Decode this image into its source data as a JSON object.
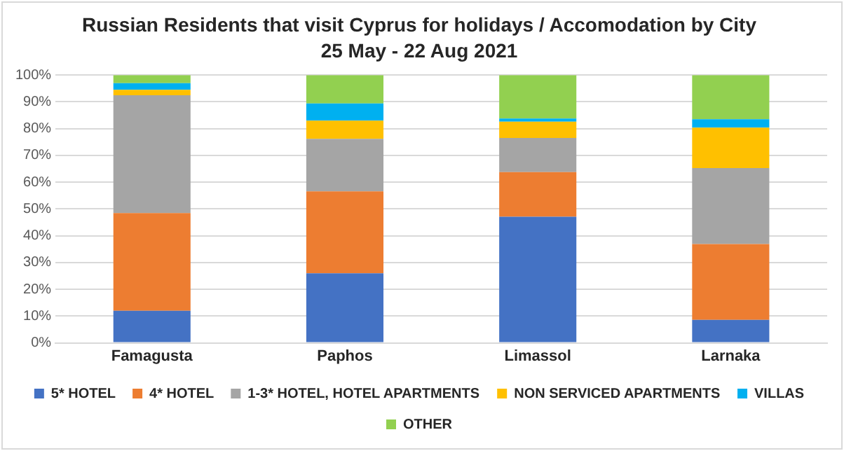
{
  "chart_data": {
    "type": "bar",
    "stacked": true,
    "title": "Russian Residents that visit Cyprus for holidays / Accomodation by City",
    "subtitle": "25 May - 22 Aug 2021",
    "categories": [
      "Famagusta",
      "Paphos",
      "Limassol",
      "Larnaka"
    ],
    "series": [
      {
        "name": "5* HOTEL",
        "color": "#4472c4",
        "values": [
          12,
          26,
          47.1,
          8.6
        ]
      },
      {
        "name": "4* HOTEL",
        "color": "#ed7d31",
        "values": [
          36.5,
          30.6,
          16.7,
          28.3
        ]
      },
      {
        "name": "1-3* HOTEL, HOTEL APARTMENTS",
        "color": "#a5a5a5",
        "values": [
          44,
          19.6,
          12.7,
          28.4
        ]
      },
      {
        "name": "NON SERVICED APARTMENTS",
        "color": "#ffc000",
        "values": [
          2,
          6.8,
          6.1,
          15.1
        ]
      },
      {
        "name": "VILLAS",
        "color": "#00b0f0",
        "values": [
          2.5,
          6.4,
          1.2,
          3.1
        ]
      },
      {
        "name": "OTHER",
        "color": "#92d050",
        "values": [
          3,
          10.6,
          16.2,
          16.5
        ]
      }
    ],
    "ylim": [
      0,
      100
    ],
    "yticks": [
      {
        "value": 0,
        "label": "0%"
      },
      {
        "value": 10,
        "label": "10%"
      },
      {
        "value": 20,
        "label": "20%"
      },
      {
        "value": 30,
        "label": "30%"
      },
      {
        "value": 40,
        "label": "40%"
      },
      {
        "value": 50,
        "label": "50%"
      },
      {
        "value": 60,
        "label": "60%"
      },
      {
        "value": 70,
        "label": "70%"
      },
      {
        "value": 80,
        "label": "80%"
      },
      {
        "value": 90,
        "label": "90%"
      },
      {
        "value": 100,
        "label": "100%"
      }
    ],
    "grid": "y",
    "legend": "bottom"
  }
}
